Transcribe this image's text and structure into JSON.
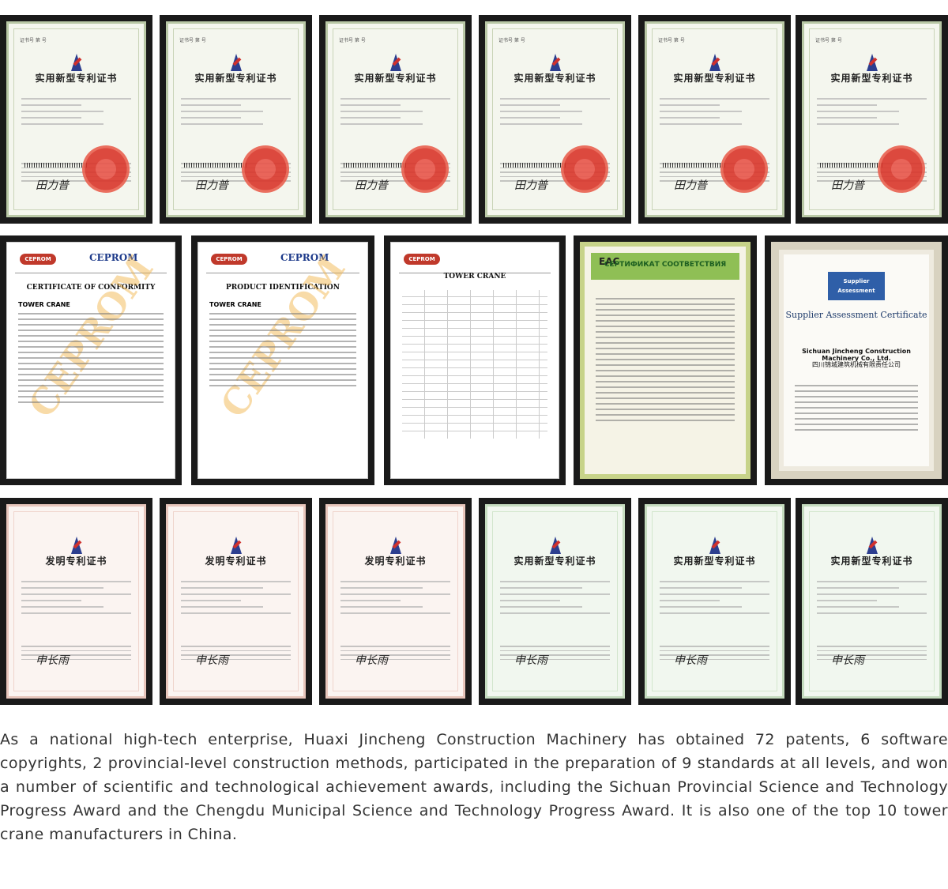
{
  "certificates": {
    "utility_title": "实用新型专利证书",
    "invention_title": "发明专利证书",
    "ce_brand": "CEPROM",
    "ce_logo": "CEPROM",
    "ce_title": "CERTIFICATE OF CONFORMITY",
    "ce_annex": "PRODUCT IDENTIFICATION",
    "ce_product": "TOWER CRANE",
    "eac_mark": "EAC",
    "eac_title": "СЕРТИФИКАТ СООТВЕТСТВИЯ",
    "tuv_badge_line1": "Supplier",
    "tuv_badge_line2": "Assessment",
    "tuv_title": "Supplier Assessment Certificate",
    "tuv_company": "Sichuan Jincheng Construction Machinery Co., Ltd.",
    "tuv_company_cn": "四川锦城建筑机械有限责任公司",
    "signature": "田力普",
    "signature2": "申长雨"
  },
  "caption": "As a national high-tech enterprise, Huaxi Jincheng Construction Machinery has obtained 72 patents, 6 software copyrights, 2 provincial-level construction methods, participated in the preparation of 9 standards at all levels, and won a number of scientific and technological achievement awards, including the Sichuan Provincial Science and Technology Progress Award and the Chengdu Municipal Science and Technology Progress Award. It is also one of the top 10 tower crane manufacturers in China."
}
